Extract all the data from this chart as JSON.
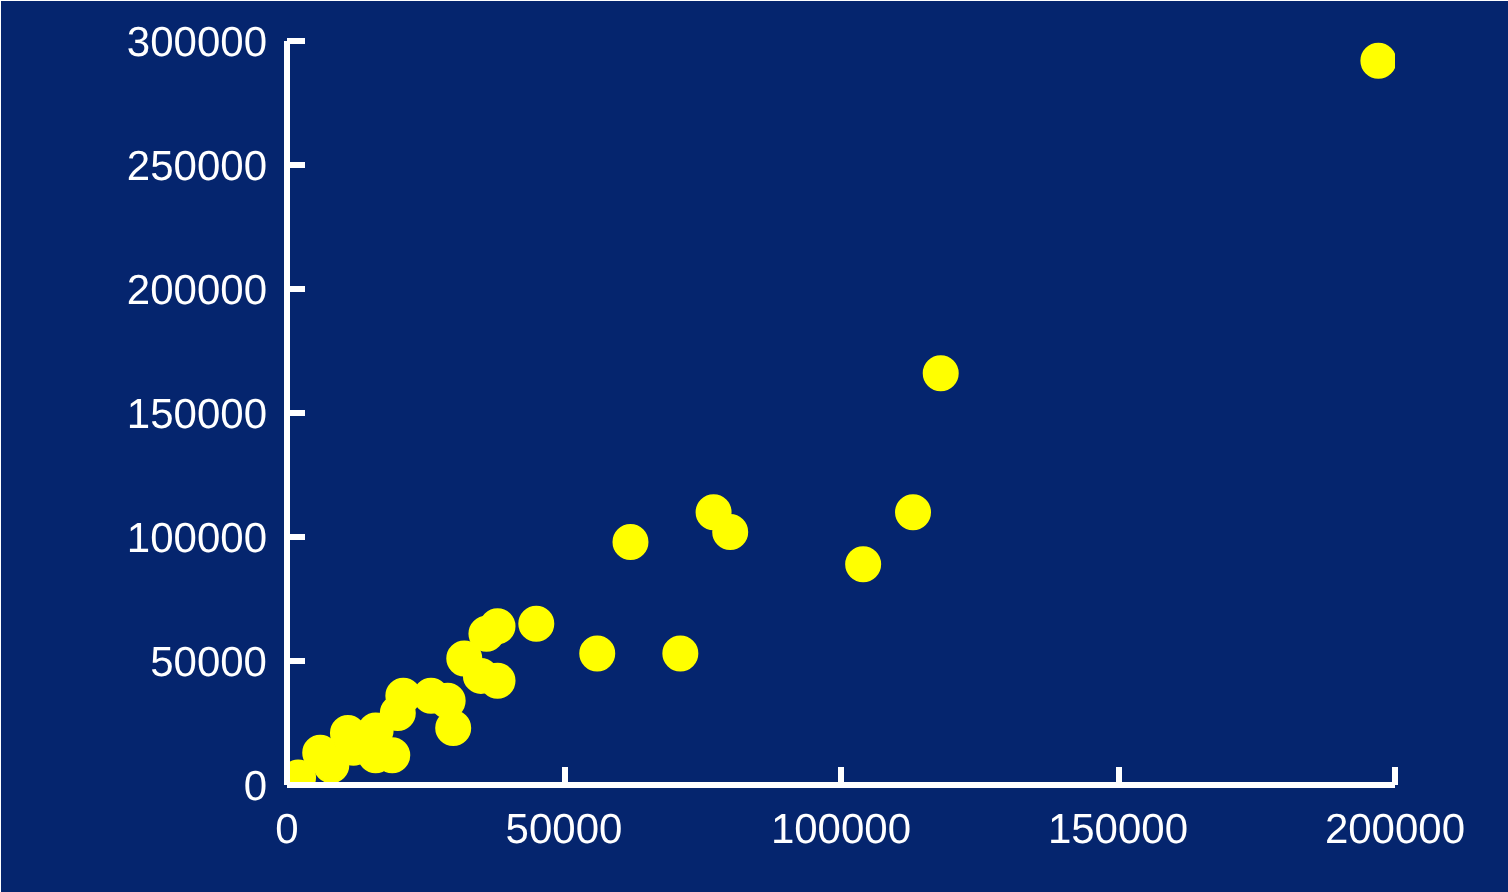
{
  "chart_data": {
    "type": "scatter",
    "xlim": [
      0,
      200000
    ],
    "ylim": [
      0,
      300000
    ],
    "xticks": [
      0,
      50000,
      100000,
      150000,
      200000
    ],
    "yticks": [
      0,
      50000,
      100000,
      150000,
      200000,
      250000,
      300000
    ],
    "grid": false,
    "marker": "circle",
    "series": [
      {
        "color": "#ffff00",
        "x": [
          197000,
          118000,
          113000,
          104000,
          77000,
          80000,
          62000,
          56000,
          71000,
          45000,
          36000,
          38000,
          32000,
          35000,
          38000,
          30000,
          29000,
          26000,
          21000,
          20000,
          19000,
          16000,
          16000,
          11000,
          12000,
          6000,
          8000,
          2000
        ],
        "values": [
          292000,
          166000,
          110000,
          89000,
          110000,
          102000,
          98000,
          53000,
          53000,
          65000,
          61000,
          64000,
          51000,
          44000,
          42000,
          23000,
          34000,
          36000,
          36000,
          29000,
          12000,
          12000,
          22000,
          21000,
          15000,
          13000,
          8000,
          3000
        ]
      }
    ]
  }
}
